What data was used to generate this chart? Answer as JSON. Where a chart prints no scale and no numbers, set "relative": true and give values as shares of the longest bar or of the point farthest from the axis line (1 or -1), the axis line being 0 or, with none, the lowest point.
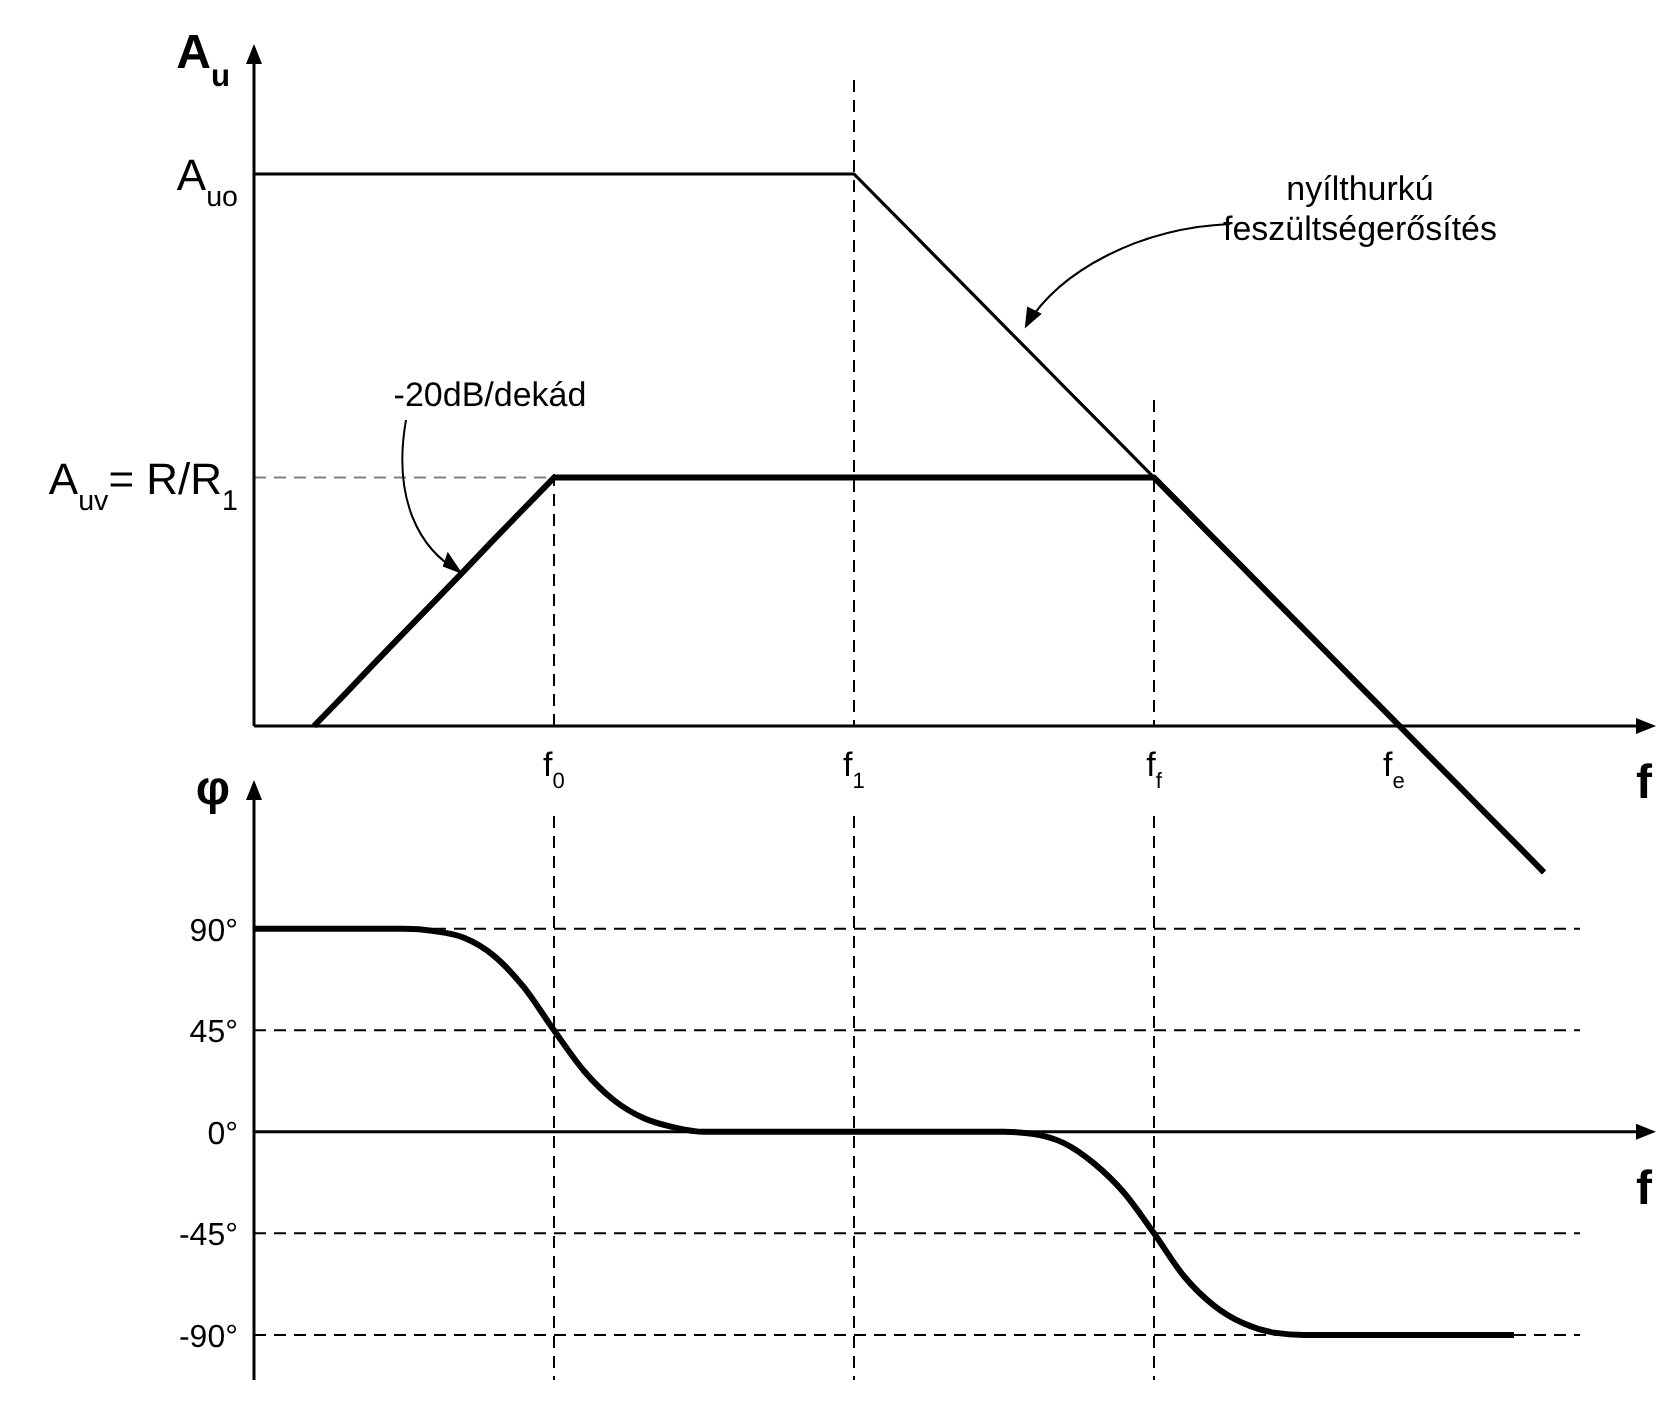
{
  "chart_data": [
    {
      "type": "line",
      "ylabel": "A$_{u}$",
      "xlabel": "f",
      "relative": true,
      "categories": [
        null,
        null,
        null,
        null,
        null,
        null,
        null,
        null,
        null,
        null,
        "f$_{0}$",
        null,
        null,
        null,
        null,
        null,
        null,
        null,
        null,
        null,
        "f$_{1}$",
        null,
        null,
        null,
        null,
        null,
        null,
        null,
        null,
        null,
        "f$_{f}$",
        null,
        null,
        null,
        null,
        null,
        null,
        null,
        "f$_{e}$",
        null,
        null,
        null,
        null,
        null
      ],
      "tick_labels": "x",
      "grid": false,
      "marker": "none",
      "line_style": "solid",
      "series": [
        {
          "color": "#000000",
          "values": [
            1,
            1,
            1,
            1,
            1,
            1,
            1,
            1,
            1,
            1,
            1,
            1,
            1,
            1,
            1,
            1,
            1,
            1,
            1,
            1,
            1,
            0.945,
            0.89,
            0.835,
            0.78,
            0.725,
            0.67,
            0.615,
            0.56,
            0.505,
            0.45,
            0.395,
            0.34,
            0.285,
            0.23,
            0.175,
            0.12,
            0.065,
            0.01,
            -0.045,
            -0.1,
            -0.155,
            -0.21,
            -0.265
          ]
        },
        {
          "color": "#000000",
          "values": [
            null,
            null,
            0,
            0.056,
            0.113,
            0.169,
            0.225,
            0.281,
            0.338,
            0.394,
            0.45,
            0.45,
            0.45,
            0.45,
            0.45,
            0.45,
            0.45,
            0.45,
            0.45,
            0.45,
            0.45,
            0.45,
            0.45,
            0.45,
            0.45,
            0.45,
            0.45,
            0.45,
            0.45,
            0.45,
            0.45,
            0.395,
            0.34,
            0.285,
            0.23,
            0.175,
            0.12,
            0.065,
            0.01,
            -0.045,
            -0.1,
            -0.155,
            -0.21,
            -0.265
          ]
        }
      ],
      "ref_lines": [
        {
          "axis": "y",
          "value": 0.45,
          "label": "A$_{uv}$= R/R$_{1}$",
          "color": "#808080",
          "line_style": "dashed"
        },
        {
          "axis": "x",
          "value": "f$_{0}$",
          "color": "#000000",
          "line_style": "dashed"
        },
        {
          "axis": "x",
          "value": "f$_{1}$",
          "color": "#000000",
          "line_style": "dashed"
        },
        {
          "axis": "x",
          "value": "f$_{f}$",
          "color": "#000000",
          "line_style": "dashed"
        }
      ],
      "annotations": [
        "A$_{uo}$",
        "-20dB/dekád",
        "nyílthurkú feszültségerősítés"
      ]
    },
    {
      "type": "line",
      "ylabel": "φ",
      "xlabel": "f",
      "ylim": [
        -110,
        140
      ],
      "categories": [
        null,
        null,
        null,
        null,
        null,
        null,
        null,
        null,
        null,
        null,
        "f$_{0}$",
        null,
        null,
        null,
        null,
        null,
        null,
        null,
        null,
        null,
        "f$_{1}$",
        null,
        null,
        null,
        null,
        null,
        null,
        null,
        null,
        null,
        "f$_{f}$",
        null,
        null,
        null,
        null,
        null,
        null,
        null,
        null,
        null,
        null,
        null,
        null,
        null
      ],
      "yticks": [
        {
          "value": 90,
          "label": "90°"
        },
        {
          "value": 45,
          "label": "45°"
        },
        {
          "value": 0,
          "label": "0°"
        },
        {
          "value": -45,
          "label": "-45°"
        },
        {
          "value": -90,
          "label": "-90°"
        }
      ],
      "tick_labels": "y",
      "grid": "y",
      "marker": "none",
      "line_style": "solid",
      "series": [
        {
          "color": "#000000",
          "values": [
            90,
            90,
            90,
            90,
            90,
            90,
            89,
            86,
            78,
            64,
            45,
            27,
            14,
            6,
            2,
            0,
            0,
            0,
            0,
            0,
            0,
            0,
            0,
            0,
            0,
            0,
            -1,
            -5,
            -14,
            -27,
            -45,
            -64,
            -77,
            -85,
            -89,
            -90,
            -90,
            -90,
            -90,
            -90,
            -90,
            -90,
            -90,
            null
          ]
        }
      ],
      "ref_lines": [
        {
          "axis": "x",
          "value": "f$_{0}$",
          "color": "#000000",
          "line_style": "dashed"
        },
        {
          "axis": "x",
          "value": "f$_{1}$",
          "color": "#000000",
          "line_style": "dashed"
        },
        {
          "axis": "x",
          "value": "f$_{f}$",
          "color": "#000000",
          "line_style": "dashed"
        }
      ]
    }
  ]
}
